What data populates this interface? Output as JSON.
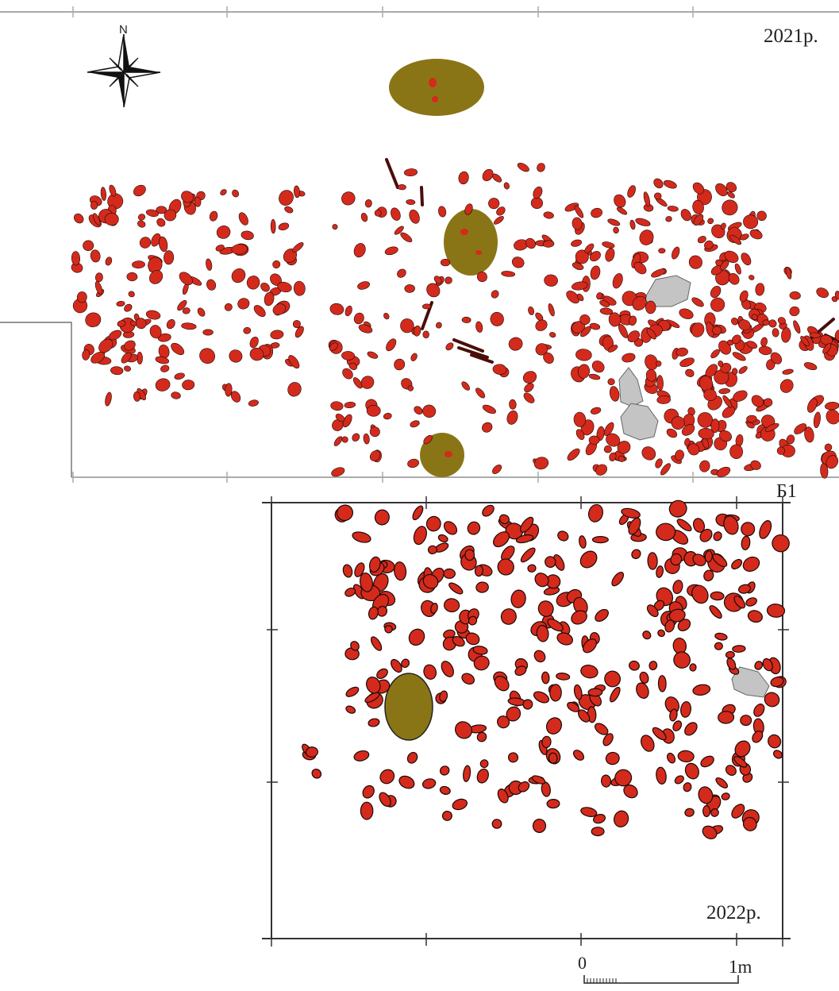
{
  "labels": {
    "season_1": "2021р.",
    "season_2": "2022р.",
    "grid_square": "Б1",
    "north": "N"
  },
  "scale_bar": {
    "start": "0",
    "end": "1m"
  },
  "legend_colors": {
    "stone": "#d42a1c",
    "stone_outline": "#1a0a08",
    "pit": "#8a7516",
    "boulder": "#c4c4c4",
    "bone": "#6b1410",
    "frame": "#333333",
    "grid_line": "#aaaaaa"
  }
}
